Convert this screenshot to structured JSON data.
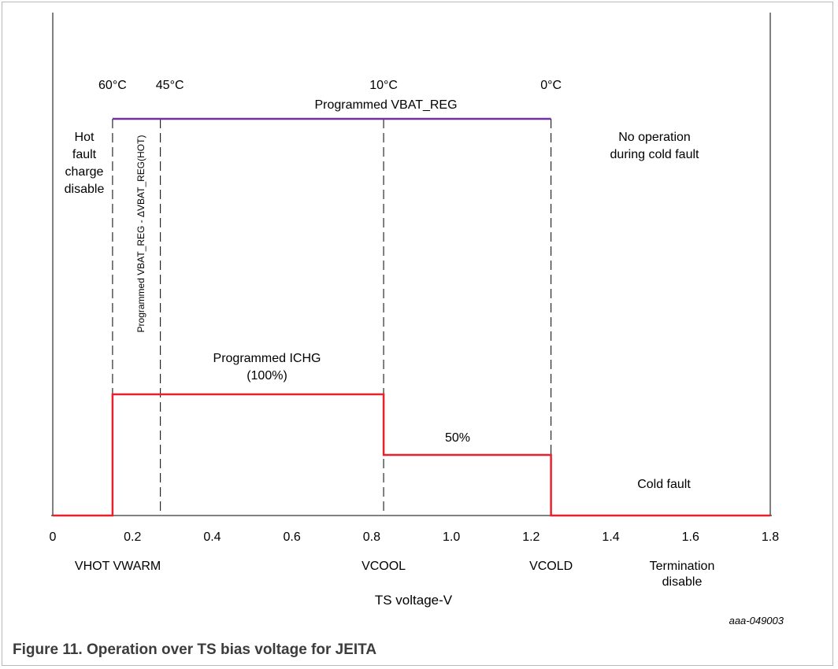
{
  "chart_data": {
    "type": "line",
    "xlabel": "TS voltage-V",
    "xlim": [
      0,
      1.8
    ],
    "x_ticks": [
      "0",
      "0.2",
      "0.4",
      "0.6",
      "0.8",
      "1.0",
      "1.2",
      "1.4",
      "1.6",
      "1.8"
    ],
    "series": [
      {
        "color": "#7030a0",
        "points": [
          [
            0.15,
            1
          ],
          [
            1.25,
            1
          ]
        ]
      },
      {
        "color": "#e8212d",
        "points": [
          [
            0,
            0
          ],
          [
            0.15,
            0
          ],
          [
            0.15,
            100
          ],
          [
            0.83,
            100
          ],
          [
            0.83,
            50
          ],
          [
            1.25,
            50
          ],
          [
            1.25,
            0
          ],
          [
            1.8,
            0
          ]
        ]
      }
    ],
    "thresholds": [
      {
        "x": 0.15,
        "temperature": "60°C",
        "name": "VHOT VWARM"
      },
      {
        "x": 0.27,
        "temperature": "45°C",
        "name": ""
      },
      {
        "x": 0.83,
        "temperature": "10°C",
        "name": "VCOOL"
      },
      {
        "x": 1.25,
        "temperature": "0°C",
        "name": "VCOLD"
      }
    ],
    "annotations": {
      "vbat_reg": "Programmed VBAT_REG",
      "vbat_reg_hot": "Programmed VBAT_REG - ΔVBAT_REG(HOT)",
      "hot_fault": [
        "Hot",
        "fault",
        "charge",
        "disable"
      ],
      "cold_no_op": [
        "No operation",
        "during cold fault"
      ],
      "ichg_full": [
        "Programmed ICHG",
        "(100%)"
      ],
      "ichg_half": "50%",
      "cold_fault": "Cold fault",
      "termination": [
        "Termination",
        "disable"
      ]
    }
  },
  "figure_id": "aaa-049003",
  "caption": "Figure 11.  Operation over TS bias voltage for JEITA"
}
